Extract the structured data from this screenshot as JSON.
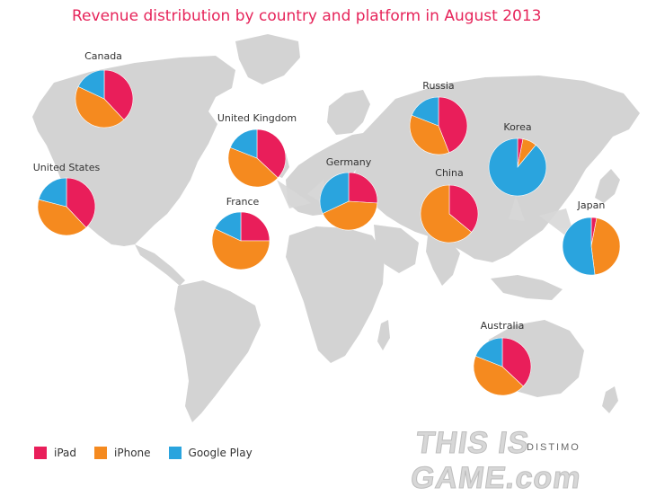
{
  "title": "Revenue distribution by country and platform in August 2013",
  "colors": {
    "ipad": "#e91e5a",
    "iphone": "#f58a1f",
    "googleplay": "#2aa4de",
    "land": "#d3d3d3",
    "callout": "#d8d8d8"
  },
  "legend": [
    {
      "label": "iPad",
      "color": "#e91e5a"
    },
    {
      "label": "iPhone",
      "color": "#f58a1f"
    },
    {
      "label": "Google Play",
      "color": "#2aa4de"
    }
  ],
  "watermark": "THIS IS GAME.com",
  "watermark_brand": "DISTIMO",
  "chart_data": {
    "type": "pie",
    "title": "Revenue distribution by country and platform in August 2013",
    "series_names": [
      "iPad",
      "iPhone",
      "Google Play"
    ],
    "countries": [
      {
        "name": "Canada",
        "values": [
          38,
          44,
          18
        ]
      },
      {
        "name": "United States",
        "values": [
          38,
          41,
          21
        ]
      },
      {
        "name": "United Kingdom",
        "values": [
          37,
          44,
          19
        ]
      },
      {
        "name": "France",
        "values": [
          25,
          57,
          18
        ]
      },
      {
        "name": "Germany",
        "values": [
          26,
          42,
          32
        ]
      },
      {
        "name": "Russia",
        "values": [
          44,
          37,
          19
        ]
      },
      {
        "name": "China",
        "values": [
          36,
          64,
          0
        ]
      },
      {
        "name": "Korea",
        "values": [
          3,
          8,
          89
        ]
      },
      {
        "name": "Japan",
        "values": [
          3,
          45,
          52
        ]
      },
      {
        "name": "Australia",
        "values": [
          37,
          44,
          19
        ]
      }
    ]
  }
}
